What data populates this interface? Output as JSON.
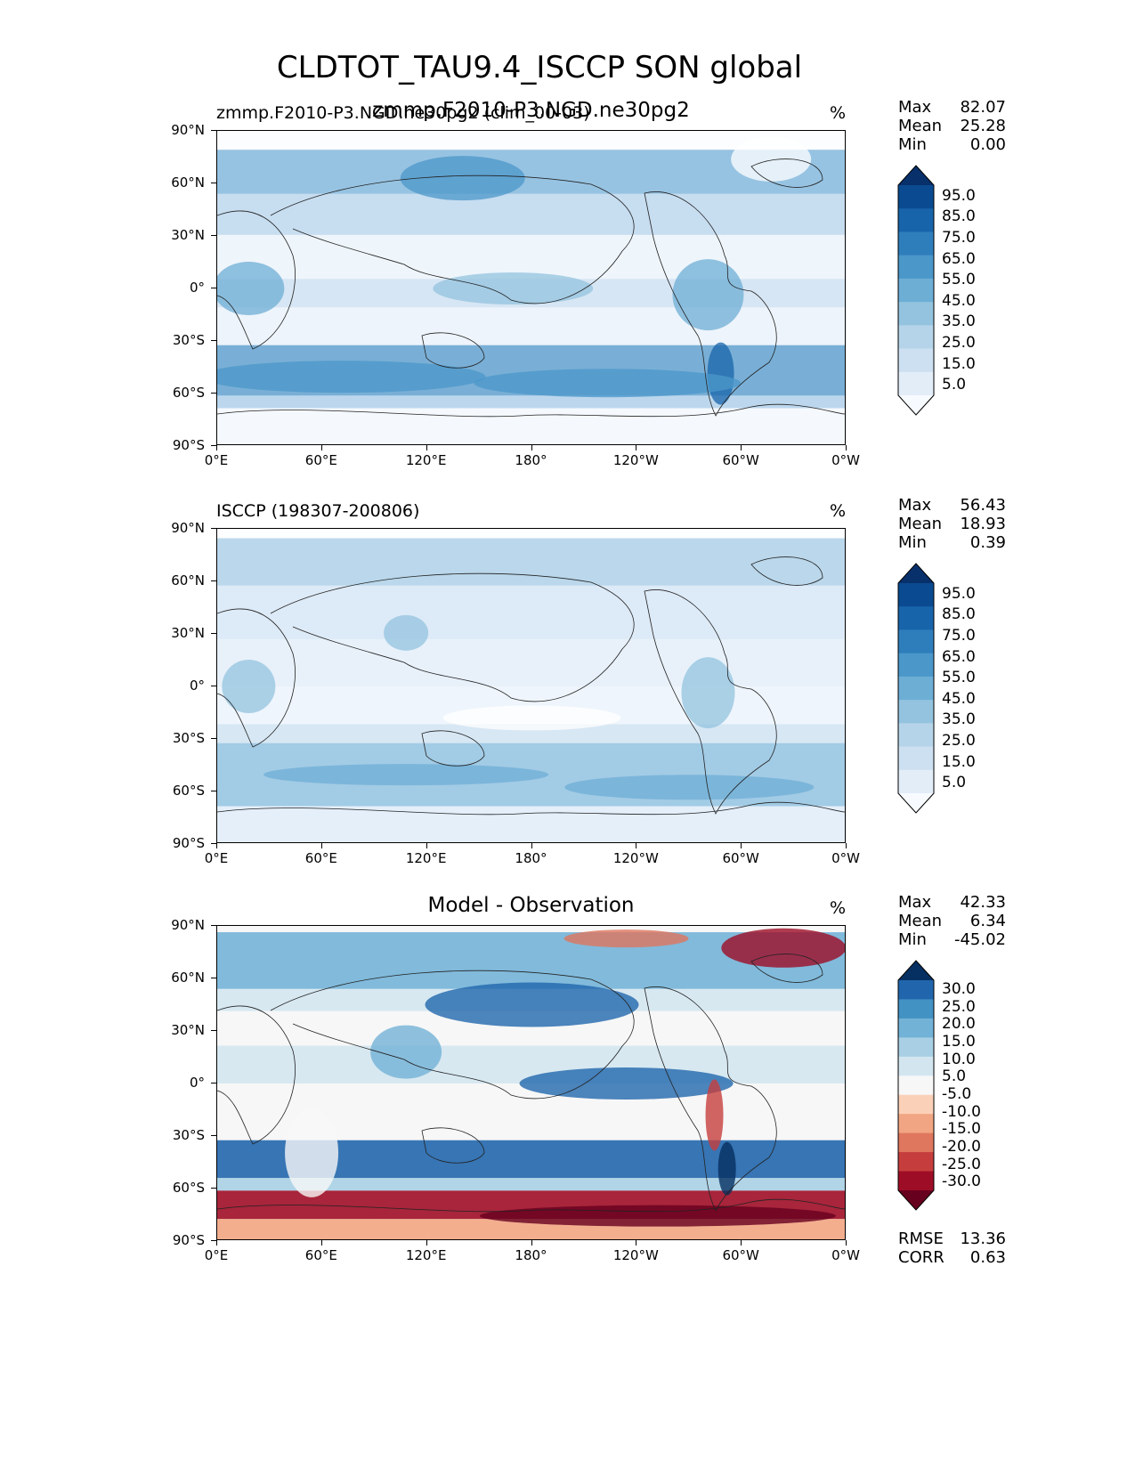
{
  "title": "CLDTOT_TAU9.4_ISCCP SON global",
  "panels": [
    {
      "id": "model",
      "left_title": "zmmp.F2010-P3.NGD.ne30pg2 (clim_00-03)",
      "center_title": "zmmp.F2010-P3.NGD.ne30pg2",
      "units": "%",
      "stats": [
        {
          "label": "Max",
          "value": "82.07"
        },
        {
          "label": "Mean",
          "value": "25.28"
        },
        {
          "label": "Min",
          "value": "0.00"
        }
      ],
      "colorbar_labels": [
        "95.0",
        "85.0",
        "75.0",
        "65.0",
        "55.0",
        "45.0",
        "35.0",
        "25.0",
        "15.0",
        "5.0"
      ],
      "colorbar_colors": [
        "#f7fbff",
        "#e2edf8",
        "#cde0f1",
        "#b5d4e9",
        "#93c3df",
        "#6daed5",
        "#4b97c9",
        "#2f7ebc",
        "#1864aa",
        "#0a4a90",
        "#08306b"
      ]
    },
    {
      "id": "obs",
      "left_title": "ISCCP (198307-200806)",
      "center_title": "",
      "units": "%",
      "stats": [
        {
          "label": "Max",
          "value": "56.43"
        },
        {
          "label": "Mean",
          "value": "18.93"
        },
        {
          "label": "Min",
          "value": "0.39"
        }
      ],
      "colorbar_labels": [
        "95.0",
        "85.0",
        "75.0",
        "65.0",
        "55.0",
        "45.0",
        "35.0",
        "25.0",
        "15.0",
        "5.0"
      ],
      "colorbar_colors": [
        "#f7fbff",
        "#e2edf8",
        "#cde0f1",
        "#b5d4e9",
        "#93c3df",
        "#6daed5",
        "#4b97c9",
        "#2f7ebc",
        "#1864aa",
        "#0a4a90",
        "#08306b"
      ]
    },
    {
      "id": "diff",
      "left_title": "",
      "center_title": "Model - Observation",
      "units": "%",
      "stats": [
        {
          "label": "Max",
          "value": "42.33"
        },
        {
          "label": "Mean",
          "value": "6.34"
        },
        {
          "label": "Min",
          "value": "-45.02"
        }
      ],
      "colorbar_labels": [
        "30.0",
        "25.0",
        "20.0",
        "15.0",
        "10.0",
        "5.0",
        "-5.0",
        "-10.0",
        "-15.0",
        "-20.0",
        "-25.0",
        "-30.0"
      ],
      "colorbar_colors": [
        "#67001f",
        "#9e0d26",
        "#c53e3d",
        "#df765e",
        "#f2a582",
        "#fbd0b9",
        "#f7f7f7",
        "#d3e6f0",
        "#a8cfe4",
        "#73b2d7",
        "#4292c3",
        "#2166ac",
        "#053061"
      ],
      "metrics": [
        {
          "label": "RMSE",
          "value": "13.36"
        },
        {
          "label": "CORR",
          "value": "0.63"
        }
      ]
    }
  ],
  "axes": {
    "lon_ticks": [
      "0°E",
      "60°E",
      "120°E",
      "180°",
      "120°W",
      "60°W",
      "0°W"
    ],
    "lat_ticks": [
      "90°N",
      "60°N",
      "30°N",
      "0°",
      "30°S",
      "60°S",
      "90°S"
    ]
  }
}
